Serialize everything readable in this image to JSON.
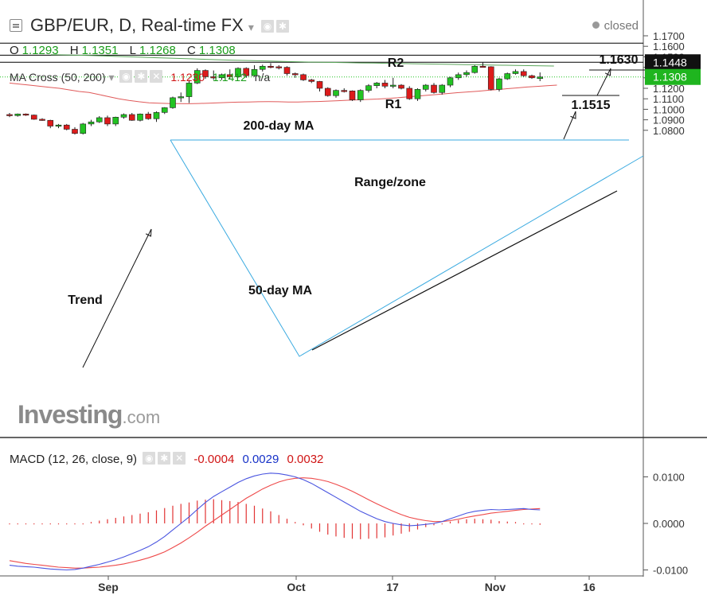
{
  "header": {
    "title": "GBP/EUR, D, Real-time FX",
    "status": "closed",
    "ohlc": {
      "o_label": "O",
      "o": "1.1293",
      "h_label": "H",
      "h": "1.1351",
      "l_label": "L",
      "l": "1.1268",
      "c_label": "C",
      "c": "1.1308"
    }
  },
  "ma_legend": {
    "name": "MA Cross (50, 200)",
    "v1": "1.1230",
    "v2": "1.1412",
    "v3": "n/a"
  },
  "macd_legend": {
    "name": "MACD (12, 26, close, 9)",
    "v1": "-0.0004",
    "v2": "0.0029",
    "v3": "0.0032"
  },
  "watermark": {
    "brand": "Investing",
    "suffix": ".com"
  },
  "colors": {
    "up": "#22c322",
    "down": "#dd1b1b",
    "ma50": "#e05a5a",
    "ma200": "#5aa65a",
    "macd_line": "#4a55e0",
    "signal_line": "#ee4a4a",
    "hist": "#e23434",
    "triangle": "#3aaae0"
  },
  "chart_data": {
    "type": "candlestick",
    "price_axis": {
      "ticks": [
        "1.1700",
        "1.1600",
        "1.1500",
        "1.1400",
        "1.1300",
        "1.1200",
        "1.1100",
        "1.1000",
        "1.0900",
        "1.0800"
      ],
      "ylim": [
        1.075,
        1.175
      ]
    },
    "time_axis": {
      "labels": [
        "Sep",
        "Oct",
        "17",
        "Nov",
        "16"
      ]
    },
    "price_badges": [
      {
        "label": "1.1448",
        "value": 1.1448,
        "style": "dark"
      },
      {
        "label": "1.1308",
        "value": 1.1308,
        "style": "green"
      }
    ],
    "levels": [
      {
        "name": "R2",
        "value": 1.163
      },
      {
        "name": "R1",
        "value": 1.1515
      },
      {
        "name": "",
        "value": 1.1448
      }
    ],
    "annotations": [
      {
        "text": "R2"
      },
      {
        "text": "R1"
      },
      {
        "text": "1.1630"
      },
      {
        "text": "1.1515"
      },
      {
        "text": "200-day MA"
      },
      {
        "text": "Range/zone"
      },
      {
        "text": "Trend"
      },
      {
        "text": "50-day MA"
      }
    ],
    "candles": [
      [
        1.095,
        1.0965,
        1.0925,
        1.094
      ],
      [
        1.094,
        1.096,
        1.093,
        1.0955
      ],
      [
        1.0955,
        1.096,
        1.0938,
        1.0945
      ],
      [
        1.0945,
        1.095,
        1.09,
        1.0905
      ],
      [
        1.0905,
        1.0915,
        1.089,
        1.0895
      ],
      [
        1.0895,
        1.09,
        1.082,
        1.084
      ],
      [
        1.084,
        1.086,
        1.082,
        1.085
      ],
      [
        1.085,
        1.086,
        1.08,
        1.081
      ],
      [
        1.081,
        1.083,
        1.076,
        1.077
      ],
      [
        1.077,
        1.087,
        1.076,
        1.086
      ],
      [
        1.086,
        1.09,
        1.084,
        1.088
      ],
      [
        1.088,
        1.0935,
        1.087,
        1.092
      ],
      [
        1.092,
        1.094,
        1.084,
        1.086
      ],
      [
        1.086,
        1.093,
        1.084,
        1.0925
      ],
      [
        1.0925,
        1.096,
        1.091,
        1.095
      ],
      [
        1.095,
        1.0965,
        1.089,
        1.0895
      ],
      [
        1.0895,
        1.096,
        1.0885,
        1.0955
      ],
      [
        1.0955,
        1.0975,
        1.09,
        1.091
      ],
      [
        1.091,
        1.098,
        1.088,
        1.097
      ],
      [
        1.097,
        1.102,
        1.0955,
        1.1015
      ],
      [
        1.1015,
        1.112,
        1.1005,
        1.111
      ],
      [
        1.111,
        1.116,
        1.107,
        1.112
      ],
      [
        1.112,
        1.128,
        1.106,
        1.125
      ],
      [
        1.125,
        1.139,
        1.124,
        1.137
      ],
      [
        1.137,
        1.138,
        1.129,
        1.131
      ],
      [
        1.131,
        1.137,
        1.128,
        1.13
      ],
      [
        1.13,
        1.134,
        1.128,
        1.133
      ],
      [
        1.133,
        1.138,
        1.129,
        1.131
      ],
      [
        1.131,
        1.14,
        1.13,
        1.139
      ],
      [
        1.139,
        1.14,
        1.13,
        1.132
      ],
      [
        1.132,
        1.142,
        1.131,
        1.138
      ],
      [
        1.138,
        1.1425,
        1.136,
        1.141
      ],
      [
        1.141,
        1.144,
        1.139,
        1.1405
      ],
      [
        1.1405,
        1.142,
        1.138,
        1.14
      ],
      [
        1.14,
        1.141,
        1.132,
        1.134
      ],
      [
        1.134,
        1.135,
        1.13,
        1.133
      ],
      [
        1.133,
        1.134,
        1.127,
        1.128
      ],
      [
        1.128,
        1.129,
        1.125,
        1.1265
      ],
      [
        1.1265,
        1.127,
        1.117,
        1.12
      ],
      [
        1.12,
        1.121,
        1.112,
        1.113
      ],
      [
        1.113,
        1.119,
        1.111,
        1.118
      ],
      [
        1.118,
        1.12,
        1.116,
        1.1175
      ],
      [
        1.1175,
        1.118,
        1.108,
        1.109
      ],
      [
        1.109,
        1.119,
        1.107,
        1.118
      ],
      [
        1.118,
        1.124,
        1.116,
        1.1225
      ],
      [
        1.1225,
        1.126,
        1.12,
        1.125
      ],
      [
        1.125,
        1.128,
        1.12,
        1.122
      ],
      [
        1.122,
        1.13,
        1.12,
        1.123
      ],
      [
        1.123,
        1.124,
        1.119,
        1.12
      ],
      [
        1.12,
        1.122,
        1.109,
        1.11
      ],
      [
        1.11,
        1.12,
        1.108,
        1.119
      ],
      [
        1.119,
        1.124,
        1.117,
        1.123
      ],
      [
        1.123,
        1.125,
        1.115,
        1.116
      ],
      [
        1.116,
        1.124,
        1.114,
        1.123
      ],
      [
        1.123,
        1.131,
        1.121,
        1.13
      ],
      [
        1.13,
        1.135,
        1.128,
        1.133
      ],
      [
        1.133,
        1.137,
        1.131,
        1.135
      ],
      [
        1.135,
        1.142,
        1.134,
        1.141
      ],
      [
        1.141,
        1.1448,
        1.14,
        1.1405
      ],
      [
        1.1405,
        1.141,
        1.118,
        1.119
      ],
      [
        1.119,
        1.13,
        1.117,
        1.129
      ],
      [
        1.129,
        1.135,
        1.128,
        1.134
      ],
      [
        1.134,
        1.138,
        1.133,
        1.136
      ],
      [
        1.136,
        1.138,
        1.131,
        1.132
      ],
      [
        1.132,
        1.133,
        1.129,
        1.13
      ],
      [
        1.1293,
        1.1351,
        1.1268,
        1.1308
      ]
    ],
    "ma50": [
      1.125,
      1.124,
      1.123,
      1.122,
      1.121,
      1.12,
      1.1185,
      1.117,
      1.116,
      1.114,
      1.112,
      1.11,
      1.1085,
      1.1072,
      1.1062,
      1.1058,
      1.1055,
      1.1054,
      1.1053,
      1.1055,
      1.1058,
      1.1062,
      1.1065,
      1.1068,
      1.107,
      1.1072,
      1.1073,
      1.1072,
      1.107,
      1.107,
      1.1072,
      1.1074,
      1.1078,
      1.1082,
      1.1086,
      1.109,
      1.1094,
      1.1098,
      1.1104,
      1.111,
      1.1118,
      1.1126,
      1.1134,
      1.1142,
      1.115,
      1.1158,
      1.1165,
      1.1172,
      1.118,
      1.1188,
      1.1196,
      1.1204,
      1.1212,
      1.1218,
      1.1224,
      1.123
    ],
    "ma200": [
      1.152,
      1.1518,
      1.1515,
      1.1512,
      1.1508,
      1.1504,
      1.15,
      1.1496,
      1.1492,
      1.1488,
      1.1484,
      1.148,
      1.1476,
      1.1472,
      1.1468,
      1.1465,
      1.1462,
      1.1459,
      1.1456,
      1.1453,
      1.145,
      1.1448,
      1.1446,
      1.1444,
      1.1442,
      1.144,
      1.1438,
      1.1436,
      1.1434,
      1.1432,
      1.143,
      1.1428,
      1.1426,
      1.1424,
      1.1422,
      1.142,
      1.1418,
      1.1416,
      1.1414,
      1.1412
    ],
    "macd": {
      "axis_ticks": [
        "0.0100",
        "0.0000",
        "-0.0100"
      ],
      "ylim": [
        -0.011,
        0.015
      ],
      "macd_line": [
        -0.009,
        -0.0092,
        -0.0093,
        -0.0094,
        -0.0096,
        -0.0098,
        -0.0099,
        -0.01,
        -0.0099,
        -0.0096,
        -0.0092,
        -0.0088,
        -0.0083,
        -0.0078,
        -0.0072,
        -0.0065,
        -0.0058,
        -0.005,
        -0.004,
        -0.0028,
        -0.0014,
        0.0,
        0.0014,
        0.003,
        0.0045,
        0.0058,
        0.0068,
        0.0078,
        0.0088,
        0.0096,
        0.0102,
        0.0106,
        0.0108,
        0.0107,
        0.0104,
        0.01,
        0.0094,
        0.0086,
        0.0076,
        0.0066,
        0.0056,
        0.0046,
        0.0036,
        0.0026,
        0.0018,
        0.001,
        0.0004,
        0.0,
        -0.0003,
        -0.0005,
        -0.0004,
        -0.0002,
        0.0,
        0.0004,
        0.001,
        0.0016,
        0.0022,
        0.0026,
        0.0028,
        0.003,
        0.0029,
        0.003,
        0.0031,
        0.0032,
        0.003,
        0.0029
      ],
      "signal_line": [
        -0.008,
        -0.0083,
        -0.0086,
        -0.0088,
        -0.009,
        -0.0092,
        -0.0094,
        -0.0095,
        -0.0096,
        -0.0096,
        -0.0095,
        -0.0094,
        -0.0092,
        -0.009,
        -0.0087,
        -0.0083,
        -0.0079,
        -0.0074,
        -0.0068,
        -0.0061,
        -0.0052,
        -0.0042,
        -0.0031,
        -0.0019,
        -0.0006,
        0.0006,
        0.0018,
        0.003,
        0.0042,
        0.0054,
        0.0064,
        0.0074,
        0.0082,
        0.0089,
        0.0094,
        0.0097,
        0.0098,
        0.0097,
        0.0094,
        0.009,
        0.0084,
        0.0077,
        0.0069,
        0.006,
        0.0051,
        0.0042,
        0.0034,
        0.0026,
        0.0019,
        0.0013,
        0.0009,
        0.0006,
        0.0004,
        0.0004,
        0.0006,
        0.0009,
        0.0013,
        0.0016,
        0.0019,
        0.0022,
        0.0024,
        0.0026,
        0.0028,
        0.003,
        0.0031,
        0.0032
      ],
      "histogram": [
        0.0,
        0.0,
        0.0,
        0.0,
        0.0,
        0.0,
        0.0,
        0.0,
        0.0,
        0.0,
        0.0003,
        0.0006,
        0.0009,
        0.0012,
        0.0015,
        0.0018,
        0.0021,
        0.0024,
        0.0028,
        0.0033,
        0.0038,
        0.0042,
        0.0045,
        0.0049,
        0.0051,
        0.0052,
        0.005,
        0.0048,
        0.0046,
        0.0042,
        0.0038,
        0.0032,
        0.0026,
        0.0018,
        0.001,
        0.0003,
        -0.0004,
        -0.0011,
        -0.0018,
        -0.0024,
        -0.0028,
        -0.0031,
        -0.0033,
        -0.0034,
        -0.0033,
        -0.0032,
        -0.003,
        -0.0026,
        -0.0022,
        -0.0018,
        -0.0013,
        -0.0008,
        -0.0004,
        0.0,
        0.0004,
        0.0007,
        0.0009,
        0.001,
        0.0009,
        0.0008,
        0.0005,
        0.0004,
        0.0003,
        0.0002,
        -0.0001,
        -0.0003
      ]
    }
  }
}
